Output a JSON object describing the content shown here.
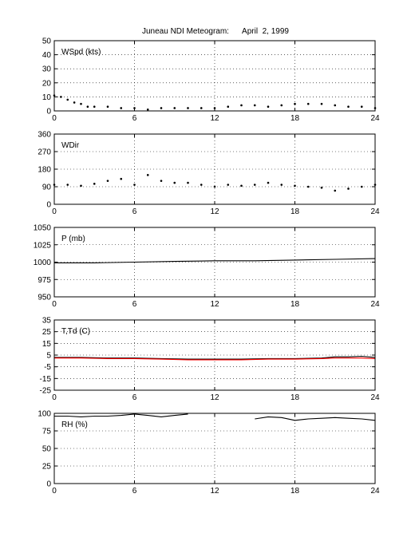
{
  "title": "Juneau NDI Meteogram:      April  2, 1999",
  "chart_data": [
    {
      "type": "scatter",
      "label": "WSpd (kts)",
      "xlim": [
        0,
        24
      ],
      "ylim": [
        0,
        50
      ],
      "xticks": [
        0,
        6,
        12,
        18,
        24
      ],
      "yticks": [
        0,
        10,
        20,
        30,
        40,
        50
      ],
      "grid": true,
      "series": [
        {
          "color": "#000000",
          "x": [
            0,
            0.5,
            1,
            1.5,
            2,
            2.5,
            3,
            4,
            5,
            6,
            7,
            8,
            9,
            10,
            11,
            12,
            13,
            14,
            15,
            16,
            17,
            18,
            19,
            20,
            21,
            22,
            23,
            24
          ],
          "y": [
            11,
            10,
            8,
            6,
            5,
            3,
            3,
            3,
            2,
            2,
            1,
            2,
            2,
            2,
            2,
            2,
            3,
            4,
            4,
            3,
            4,
            5,
            5,
            5,
            4,
            3,
            3,
            2
          ]
        }
      ]
    },
    {
      "type": "scatter",
      "label": "WDir",
      "xlim": [
        0,
        24
      ],
      "ylim": [
        0,
        360
      ],
      "xticks": [
        0,
        6,
        12,
        18,
        24
      ],
      "yticks": [
        0,
        90,
        180,
        270,
        360
      ],
      "grid": true,
      "series": [
        {
          "color": "#000000",
          "x": [
            0,
            1,
            2,
            3,
            4,
            5,
            6,
            7,
            8,
            9,
            10,
            11,
            12,
            13,
            14,
            15,
            16,
            17,
            18,
            19,
            20,
            21,
            22,
            23,
            24
          ],
          "y": [
            100,
            100,
            95,
            105,
            120,
            130,
            100,
            150,
            120,
            110,
            110,
            100,
            90,
            100,
            95,
            100,
            110,
            100,
            95,
            90,
            85,
            70,
            80,
            90,
            100
          ]
        }
      ]
    },
    {
      "type": "line",
      "label": "P (mb)",
      "xlim": [
        0,
        24
      ],
      "ylim": [
        950,
        1050
      ],
      "xticks": [
        0,
        6,
        12,
        18,
        24
      ],
      "yticks": [
        950,
        975,
        1000,
        1025,
        1050
      ],
      "grid": true,
      "series": [
        {
          "color": "#000000",
          "x": [
            0,
            3,
            6,
            9,
            12,
            15,
            18,
            21,
            24
          ],
          "y": [
            999,
            999,
            1000,
            1001,
            1002,
            1002,
            1003,
            1004,
            1005
          ]
        }
      ]
    },
    {
      "type": "line",
      "label": "T,Td (C)",
      "xlim": [
        0,
        24
      ],
      "ylim": [
        -25,
        35
      ],
      "xticks": [
        0,
        6,
        12,
        18,
        24
      ],
      "yticks": [
        -25,
        -15,
        -5,
        5,
        15,
        25,
        35
      ],
      "grid": true,
      "series": [
        {
          "color": "#000000",
          "x": [
            0,
            2,
            4,
            6,
            8,
            10,
            12,
            14,
            16,
            18,
            20,
            21,
            22,
            23,
            24
          ],
          "y": [
            3,
            3,
            2.5,
            2.5,
            2,
            1.5,
            1.5,
            1.5,
            2,
            2,
            2.5,
            3.5,
            3.5,
            4,
            3
          ]
        },
        {
          "color": "#ff0000",
          "x": [
            0,
            2,
            4,
            6,
            8,
            10,
            12,
            14,
            16,
            18,
            20,
            21,
            22,
            23,
            24
          ],
          "y": [
            2.5,
            2.5,
            2,
            2,
            1.5,
            1,
            1,
            1,
            1.5,
            1.5,
            2,
            2.5,
            2.5,
            2.5,
            2
          ]
        }
      ]
    },
    {
      "type": "line",
      "label": "RH (%)",
      "xlim": [
        0,
        24
      ],
      "ylim": [
        0,
        100
      ],
      "xticks": [
        0,
        6,
        12,
        18,
        24
      ],
      "yticks": [
        0,
        25,
        50,
        75,
        100
      ],
      "grid": true,
      "series": [
        {
          "color": "#000000",
          "x": [
            0,
            1,
            2,
            3,
            4,
            5,
            6,
            7,
            8,
            9,
            10,
            14.5,
            15,
            16,
            17,
            18,
            19,
            20,
            21,
            22,
            23,
            24
          ],
          "y": [
            96,
            96,
            95,
            96,
            96,
            97,
            99,
            97,
            95,
            97,
            99,
            null,
            92,
            95,
            94,
            90,
            92,
            93,
            94,
            93,
            92,
            90
          ]
        }
      ]
    }
  ]
}
